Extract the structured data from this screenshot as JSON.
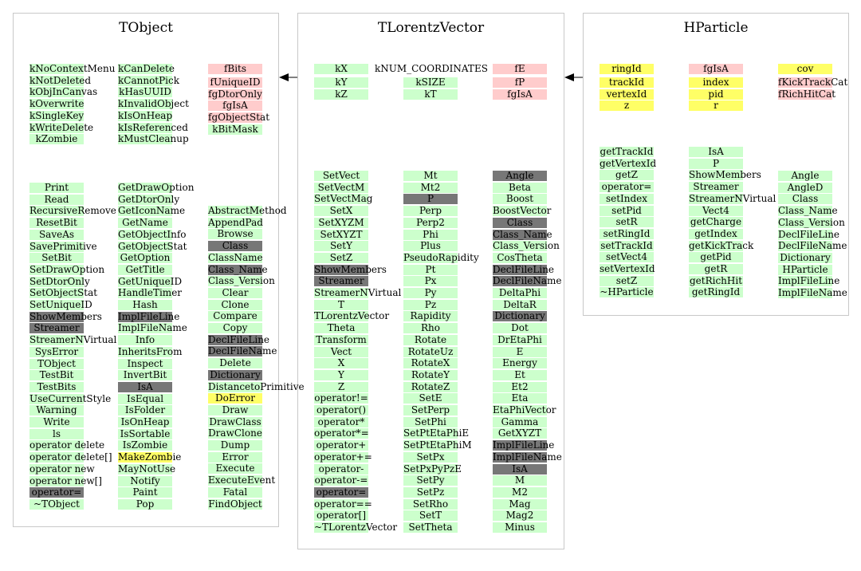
{
  "diagram": {
    "tobject": {
      "title": "TObject",
      "constants": {
        "col1": [
          "kNoContextMenu",
          "kNotDeleted",
          "kObjInCanvas",
          "kOverwrite",
          "kSingleKey",
          "kWriteDelete",
          "kZombie"
        ],
        "col2": [
          "kCanDelete",
          "kCannotPick",
          "kHasUUID",
          "kInvalidObject",
          "kIsOnHeap",
          "kIsReferenced",
          "kMustCleanup"
        ]
      },
      "members": {
        "first": "fBits",
        "rest": [
          "fUniqueID",
          "fgDtorOnly",
          "fgIsA",
          "fgObjectStat",
          "kBitMask"
        ]
      },
      "methods": {
        "col1": [
          "Print",
          "Read",
          "RecursiveRemove",
          "ResetBit",
          "SaveAs",
          "SavePrimitive",
          "SetBit",
          "SetDrawOption",
          "SetDtorOnly",
          "SetObjectStat",
          "SetUniqueID",
          "ShowMembers",
          "Streamer",
          "StreamerNVirtual",
          "SysError",
          "TObject",
          "TestBit",
          "TestBits",
          "UseCurrentStyle",
          "Warning",
          "Write",
          "ls",
          "operator delete",
          "operator delete[]",
          "operator new",
          "operator new[]",
          "operator=",
          "~TObject"
        ],
        "col2": [
          "GetDrawOption",
          "GetDtorOnly",
          "GetIconName",
          "GetName",
          "GetObjectInfo",
          "GetObjectStat",
          "GetOption",
          "GetTitle",
          "GetUniqueID",
          "HandleTimer",
          "Hash",
          "ImplFileLine",
          "ImplFileName",
          "Info",
          "InheritsFrom",
          "Inspect",
          "InvertBit",
          "IsA",
          "IsEqual",
          "IsFolder",
          "IsOnHeap",
          "IsSortable",
          "IsZombie",
          "MakeZombie",
          "MayNotUse",
          "Notify",
          "Paint",
          "Pop"
        ],
        "col3": [
          "AbstractMethod",
          "AppendPad",
          "Browse",
          "Class",
          "ClassName",
          "Class_Name",
          "Class_Version",
          "Clear",
          "Clone",
          "Compare",
          "Copy",
          "DeclFileLine",
          "DeclFileName",
          "Delete",
          "Dictionary",
          "DistancetoPrimitive",
          "DoError",
          "Draw",
          "DrawClass",
          "DrawClone",
          "Dump",
          "Error",
          "Execute",
          "ExecuteEvent",
          "Fatal",
          "FindObject"
        ]
      }
    },
    "tlorentzvector": {
      "title": "TLorentzVector",
      "constants": {
        "col1": [
          "kX",
          "kY",
          "kZ"
        ],
        "col2_first": "kNUM_COORDINATES",
        "col2": [
          "kSIZE",
          "kT"
        ]
      },
      "members": {
        "first": "fE",
        "rest": [
          "fP",
          "fgIsA"
        ]
      },
      "methods": {
        "col1": [
          "SetVect",
          "SetVectM",
          "SetVectMag",
          "SetX",
          "SetXYZM",
          "SetXYZT",
          "SetY",
          "SetZ",
          "ShowMembers",
          "Streamer",
          "StreamerNVirtual",
          "T",
          "TLorentzVector",
          "Theta",
          "Transform",
          "Vect",
          "X",
          "Y",
          "Z",
          "operator!=",
          "operator()",
          "operator*",
          "operator*=",
          "operator+",
          "operator+=",
          "operator-",
          "operator-=",
          "operator=",
          "operator==",
          "operator[]",
          "~TLorentzVector"
        ],
        "col2": [
          "Mt",
          "Mt2",
          "P",
          "Perp",
          "Perp2",
          "Phi",
          "Plus",
          "PseudoRapidity",
          "Pt",
          "Px",
          "Py",
          "Pz",
          "Rapidity",
          "Rho",
          "Rotate",
          "RotateUz",
          "RotateX",
          "RotateY",
          "RotateZ",
          "SetE",
          "SetPerp",
          "SetPhi",
          "SetPtEtaPhiE",
          "SetPtEtaPhiM",
          "SetPx",
          "SetPxPyPzE",
          "SetPy",
          "SetPz",
          "SetRho",
          "SetT",
          "SetTheta"
        ],
        "col3": [
          "Angle",
          "Beta",
          "Boost",
          "BoostVector",
          "Class",
          "Class_Name",
          "Class_Version",
          "CosTheta",
          "DeclFileLine",
          "DeclFileName",
          "DeltaPhi",
          "DeltaR",
          "Dictionary",
          "Dot",
          "DrEtaPhi",
          "E",
          "Energy",
          "Et",
          "Et2",
          "Eta",
          "EtaPhiVector",
          "Gamma",
          "GetXYZT",
          "ImplFileLine",
          "ImplFileName",
          "IsA",
          "M",
          "M2",
          "Mag",
          "Mag2",
          "Minus"
        ]
      }
    },
    "hparticle": {
      "title": "HParticle",
      "members": {
        "col1_first": "ringId",
        "col1": [
          "trackId",
          "vertexId",
          "z"
        ],
        "col2_first": "fgIsA",
        "col2": [
          "index",
          "pid",
          "r"
        ],
        "col3_first": "cov",
        "col3": [
          "fKickTrackCat",
          "fRichHitCat"
        ]
      },
      "methods": {
        "col1": [
          "getTrackId",
          "getVertexId",
          "getZ",
          "operator=",
          "setIndex",
          "setPid",
          "setR",
          "setRingId",
          "setTrackId",
          "setVect4",
          "setVertexId",
          "setZ",
          "~HParticle"
        ],
        "col2": [
          "IsA",
          "P",
          "ShowMembers",
          "Streamer",
          "StreamerNVirtual",
          "Vect4",
          "getCharge",
          "getIndex",
          "getKickTrack",
          "getPid",
          "getR",
          "getRichHit",
          "getRingId"
        ],
        "col3": [
          "Angle",
          "AngleD",
          "Class",
          "Class_Name",
          "Class_Version",
          "DeclFileLine",
          "DeclFileName",
          "Dictionary",
          "HParticle",
          "ImplFileLine",
          "ImplFileName"
        ]
      }
    },
    "colors": {
      "method": "#ccffcc",
      "member": "#ffcccc",
      "highlight": "#ffff66",
      "inherited": "#777777",
      "border": "#c8c8c8"
    },
    "styles": {
      "tobject": {
        "gray": [
          "ShowMembers",
          "Streamer",
          "operator=",
          "ImplFileLine",
          "IsA",
          "Class",
          "Class_Name",
          "DeclFileLine",
          "DeclFileName",
          "Dictionary"
        ],
        "yellow": [
          "MakeZombie",
          "DoError"
        ]
      },
      "tlorentzvector": {
        "gray": [
          "ShowMembers",
          "Streamer",
          "operator=",
          "P",
          "Angle",
          "Class",
          "Class_Name",
          "DeclFileLine",
          "DeclFileName",
          "Dictionary",
          "ImplFileLine",
          "ImplFileName",
          "IsA"
        ],
        "yellow": []
      }
    }
  }
}
